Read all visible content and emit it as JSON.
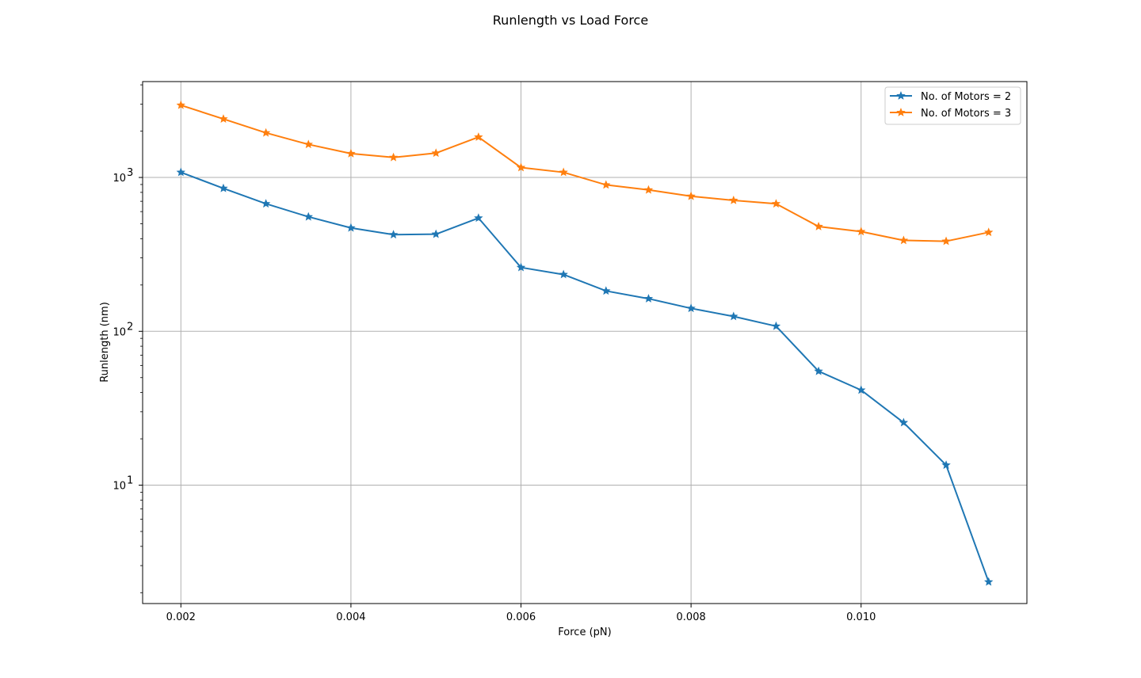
{
  "chart_data": {
    "type": "line",
    "title": "Runlength vs Load Force",
    "xlabel": "Force (pN)",
    "ylabel": "Runlength (nm)",
    "yscale": "log",
    "xlim": [
      0.00155,
      0.01195
    ],
    "ylim": [
      1.7,
      4200
    ],
    "grid": true,
    "legend_position": "top-right",
    "x_ticks": [
      {
        "value": 0.002,
        "label": "0.002"
      },
      {
        "value": 0.004,
        "label": "0.004"
      },
      {
        "value": 0.006,
        "label": "0.006"
      },
      {
        "value": 0.008,
        "label": "0.008"
      },
      {
        "value": 0.01,
        "label": "0.010"
      }
    ],
    "y_ticks": [
      {
        "value": 10,
        "base": "10",
        "exp": "1"
      },
      {
        "value": 100,
        "base": "10",
        "exp": "2"
      },
      {
        "value": 1000,
        "base": "10",
        "exp": "3"
      }
    ],
    "x": [
      0.002,
      0.0025,
      0.003,
      0.0035,
      0.004,
      0.0045,
      0.005,
      0.0055,
      0.006,
      0.0065,
      0.007,
      0.0075,
      0.008,
      0.0085,
      0.009,
      0.0095,
      0.01,
      0.0105,
      0.011,
      0.0115
    ],
    "series": [
      {
        "name": "No. of Motors = 2",
        "color": "#1f77b4",
        "marker": "star",
        "values": [
          1080,
          850,
          675,
          555,
          470,
          425,
          428,
          545,
          260,
          234,
          183,
          163,
          141,
          125,
          108,
          55,
          41.5,
          25.5,
          13.5,
          2.35
        ]
      },
      {
        "name": "No. of Motors = 3",
        "color": "#ff7f0e",
        "marker": "star",
        "values": [
          2950,
          2400,
          1950,
          1640,
          1430,
          1350,
          1440,
          1830,
          1160,
          1080,
          895,
          830,
          755,
          710,
          675,
          480,
          445,
          390,
          385,
          440
        ]
      }
    ]
  }
}
